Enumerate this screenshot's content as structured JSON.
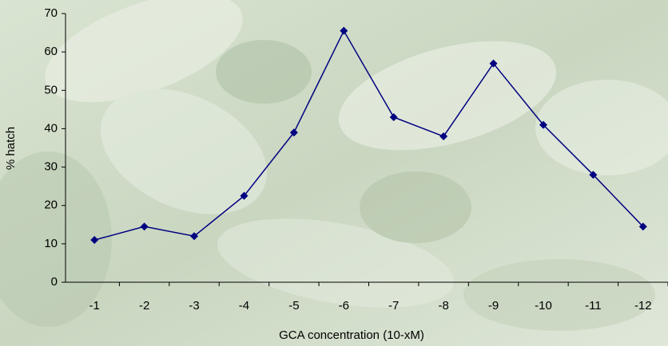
{
  "chart_data": {
    "type": "line",
    "x_label": "GCA concentration (10-xM)",
    "y_label": "% hatch",
    "categories": [
      "-1",
      "-2",
      "-3",
      "-4",
      "-5",
      "-6",
      "-7",
      "-8",
      "-9",
      "-10",
      "-11",
      "-12"
    ],
    "series": [
      {
        "name": "% hatch",
        "color": "#000080",
        "values": [
          11,
          14.5,
          12,
          22.5,
          39,
          65.5,
          43,
          38,
          57,
          41,
          28,
          14.5
        ]
      }
    ],
    "ylim": [
      0,
      70
    ],
    "yticks": [
      0,
      10,
      20,
      30,
      40,
      50,
      60,
      70
    ]
  }
}
